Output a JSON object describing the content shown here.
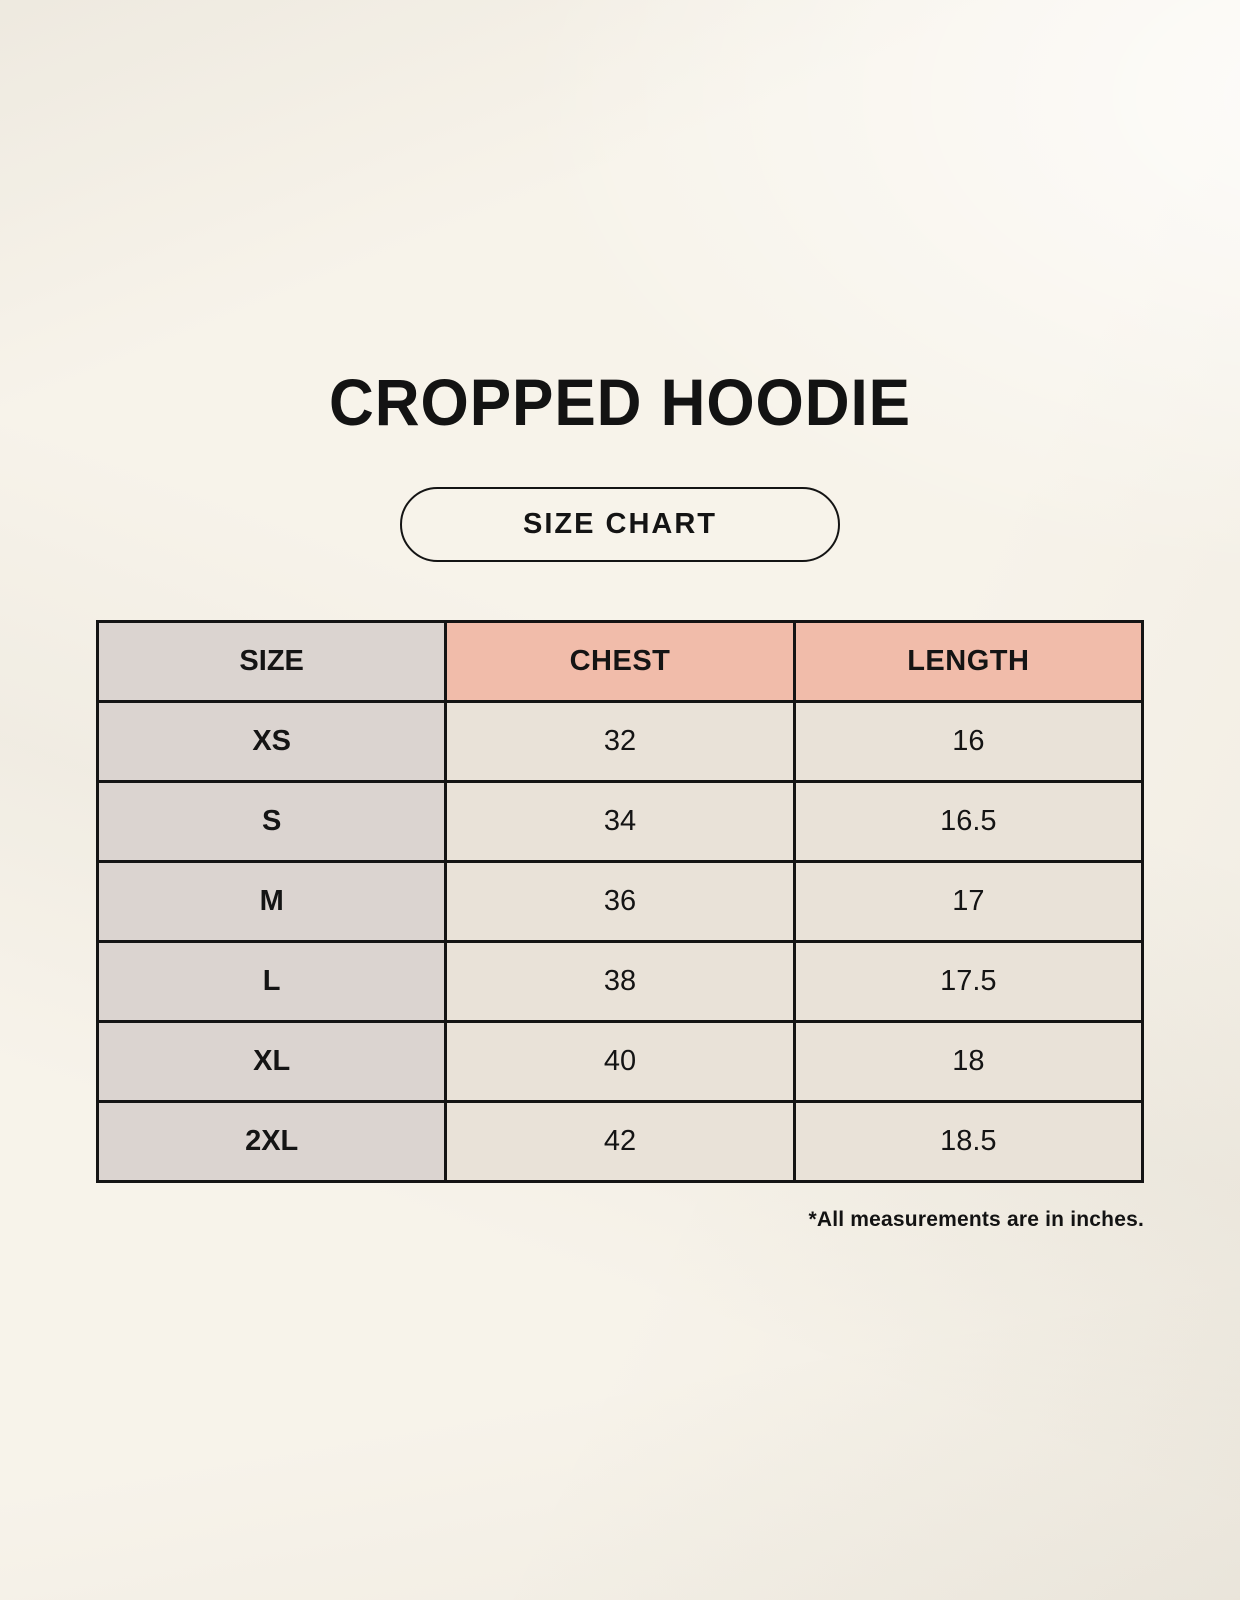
{
  "page": {
    "title": "CROPPED HOODIE",
    "size_chart_label": "SIZE CHART",
    "footnote": "*All measurements are in inches."
  },
  "chart_data": {
    "type": "table",
    "title": "CROPPED HOODIE",
    "subtitle": "SIZE CHART",
    "units": "inches",
    "columns": [
      "SIZE",
      "CHEST",
      "LENGTH"
    ],
    "rows": [
      {
        "size": "XS",
        "chest": "32",
        "length": "16"
      },
      {
        "size": "S",
        "chest": "34",
        "length": "16.5"
      },
      {
        "size": "M",
        "chest": "36",
        "length": "17"
      },
      {
        "size": "L",
        "chest": "38",
        "length": "17.5"
      },
      {
        "size": "XL",
        "chest": "40",
        "length": "18"
      },
      {
        "size": "2XL",
        "chest": "42",
        "length": "18.5"
      }
    ],
    "note": "*All measurements are in inches."
  },
  "colors": {
    "background": "#f7f3ea",
    "header_accent": "#f1bcaa",
    "size_column": "#dbd4d0",
    "data_cell": "#e9e2d8",
    "border": "#141414",
    "text": "#131313"
  }
}
